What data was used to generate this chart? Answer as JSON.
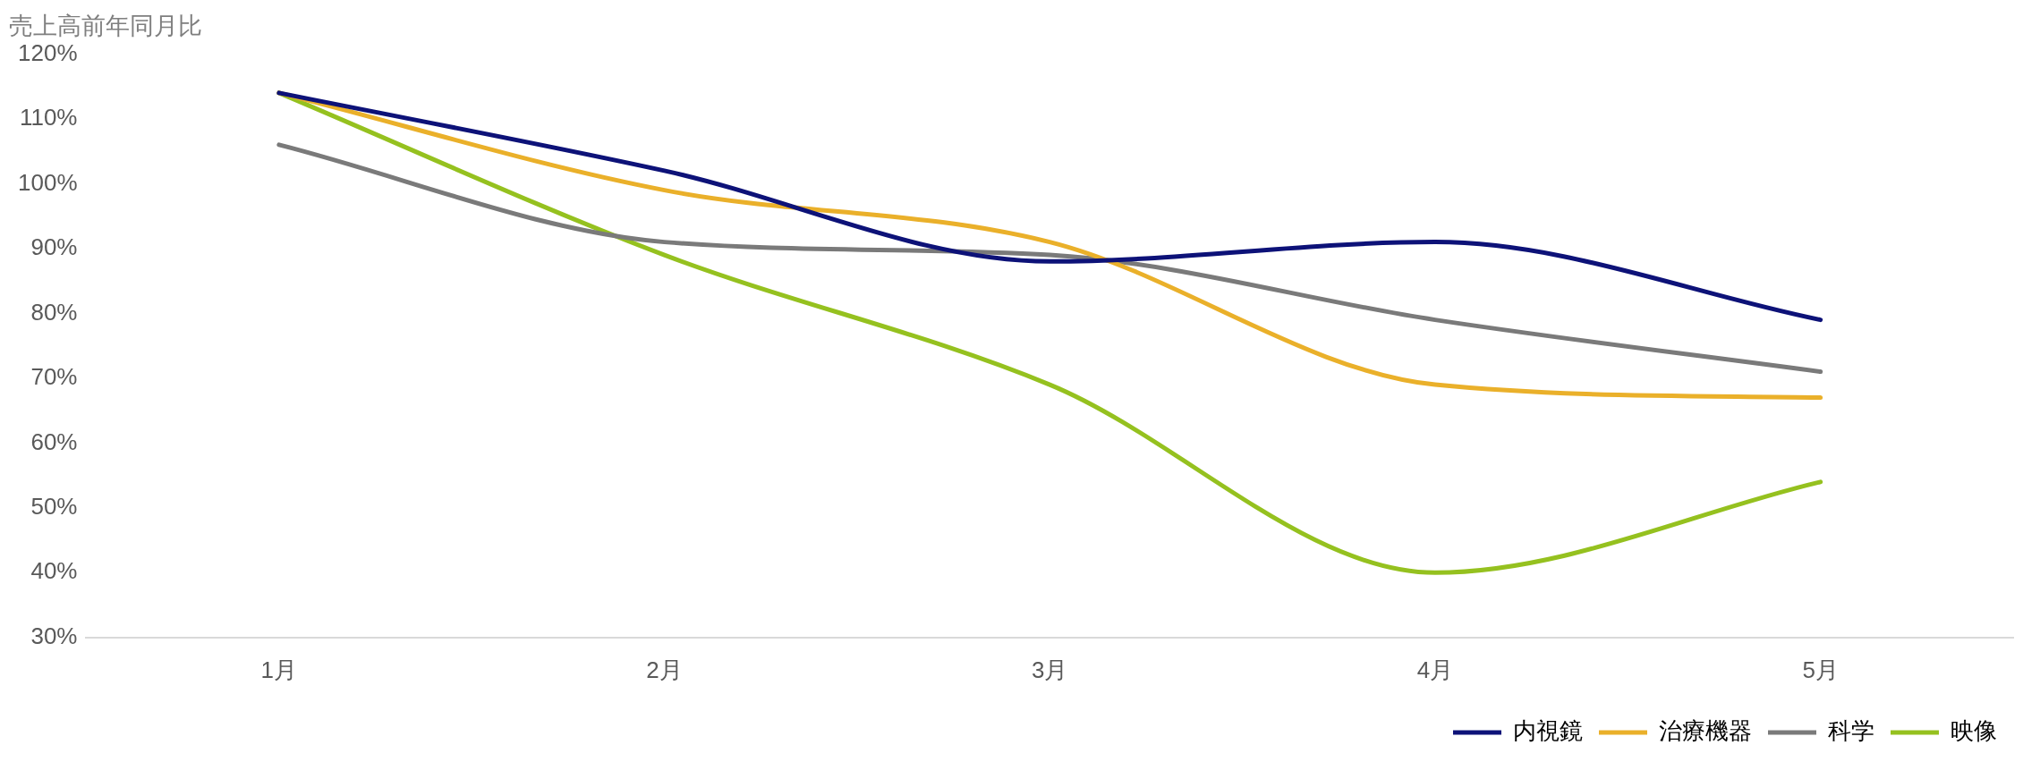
{
  "chart_data": {
    "type": "line",
    "title": "売上高前年同月比",
    "categories": [
      "1月",
      "2月",
      "3月",
      "4月",
      "5月"
    ],
    "series": [
      {
        "name": "内視鏡",
        "color": "#0d1278",
        "values": [
          114,
          102,
          88,
          91,
          79
        ]
      },
      {
        "name": "治療機器",
        "color": "#eab02a",
        "values": [
          114,
          99,
          91,
          69,
          67
        ]
      },
      {
        "name": "科学",
        "color": "#7a7a7a",
        "values": [
          106,
          91,
          89,
          79,
          71
        ]
      },
      {
        "name": "映像",
        "color": "#95c11f",
        "values": [
          114,
          89,
          69,
          40,
          54
        ]
      }
    ],
    "ylim": [
      30,
      120
    ],
    "yticks": [
      {
        "value": 30,
        "label": "30%"
      },
      {
        "value": 40,
        "label": "40%"
      },
      {
        "value": 50,
        "label": "50%"
      },
      {
        "value": 60,
        "label": "60%"
      },
      {
        "value": 70,
        "label": "70%"
      },
      {
        "value": 80,
        "label": "80%"
      },
      {
        "value": 90,
        "label": "90%"
      },
      {
        "value": 100,
        "label": "100%"
      },
      {
        "value": 110,
        "label": "110%"
      },
      {
        "value": 120,
        "label": "120%"
      }
    ],
    "grid": false,
    "legend": "bottom right",
    "marker": "none",
    "line_style": "solid"
  }
}
